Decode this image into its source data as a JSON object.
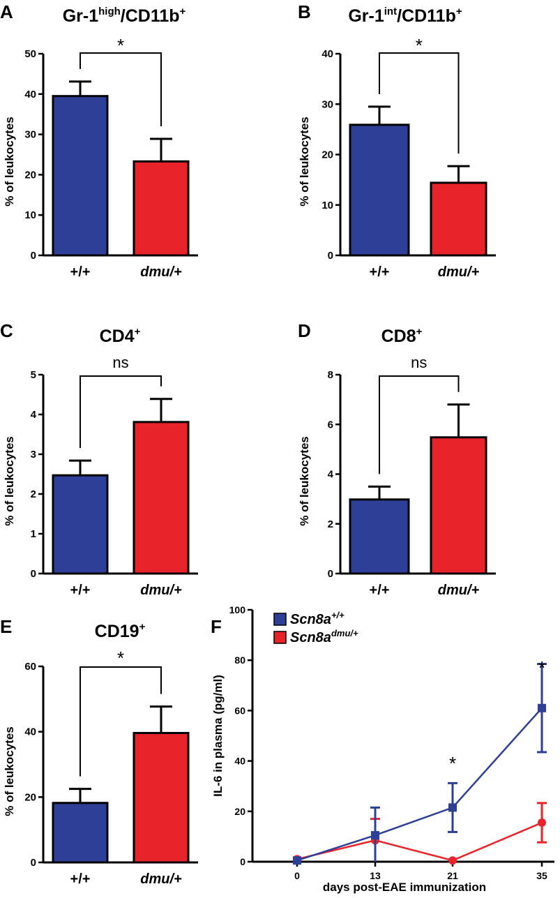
{
  "colors": {
    "wt": "#2e3f97",
    "dmu": "#e9232a",
    "axis": "#000000"
  },
  "chart_data": [
    {
      "type": "bar",
      "panel": "A",
      "title": "Gr-1",
      "title_sup": "high",
      "title_rest": "/CD11b",
      "title_sup2": "+",
      "ylabel": "% of leukocytes",
      "ylim": [
        0,
        50
      ],
      "yticks": [
        0,
        10,
        20,
        30,
        40,
        50
      ],
      "categories": [
        "+/+",
        "dmu/+"
      ],
      "category_italic": [
        false,
        true
      ],
      "values": [
        39.5,
        23.3
      ],
      "errors": [
        3.6,
        5.6
      ],
      "comparison": "*"
    },
    {
      "type": "bar",
      "panel": "B",
      "title": "Gr-1",
      "title_sup": "int",
      "title_rest": "/CD11b",
      "title_sup2": "+",
      "ylabel": "% of leukocytes",
      "ylim": [
        0,
        40
      ],
      "yticks": [
        0,
        10,
        20,
        30,
        40
      ],
      "categories": [
        "+/+",
        "dmu/+"
      ],
      "category_italic": [
        false,
        true
      ],
      "values": [
        25.9,
        14.4
      ],
      "errors": [
        3.6,
        3.3
      ],
      "comparison": "*"
    },
    {
      "type": "bar",
      "panel": "C",
      "title": "CD4",
      "title_sup": "+",
      "title_rest": "",
      "title_sup2": "",
      "ylabel": "% of leukocytes",
      "ylim": [
        0,
        5
      ],
      "yticks": [
        0,
        1,
        2,
        3,
        4,
        5
      ],
      "categories": [
        "+/+",
        "dmu/+"
      ],
      "category_italic": [
        false,
        true
      ],
      "values": [
        2.47,
        3.81
      ],
      "errors": [
        0.37,
        0.58
      ],
      "comparison": "ns"
    },
    {
      "type": "bar",
      "panel": "D",
      "title": "CD8",
      "title_sup": "+",
      "title_rest": "",
      "title_sup2": "",
      "ylabel": "% of leukocytes",
      "ylim": [
        0,
        8
      ],
      "yticks": [
        0,
        2,
        4,
        6,
        8
      ],
      "categories": [
        "+/+",
        "dmu/+"
      ],
      "category_italic": [
        false,
        true
      ],
      "values": [
        2.98,
        5.48
      ],
      "errors": [
        0.52,
        1.32
      ],
      "comparison": "ns"
    },
    {
      "type": "bar",
      "panel": "E",
      "title": "CD19",
      "title_sup": "+",
      "title_rest": "",
      "title_sup2": "",
      "ylabel": "% of leukocytes",
      "ylim": [
        0,
        60
      ],
      "yticks": [
        0,
        20,
        40,
        60
      ],
      "categories": [
        "+/+",
        "dmu/+"
      ],
      "category_italic": [
        false,
        true
      ],
      "values": [
        18.2,
        39.6
      ],
      "errors": [
        4.3,
        8.1
      ],
      "comparison": "*"
    },
    {
      "type": "line",
      "panel": "F",
      "xlabel": "days post-EAE immunization",
      "ylabel": "IL-6 in plasma (pg/ml)",
      "ylim": [
        0,
        100
      ],
      "yticks": [
        0,
        20,
        40,
        60,
        80,
        100
      ],
      "x": [
        0,
        13,
        21,
        35
      ],
      "x_labels": [
        "0",
        "13",
        "21",
        "35"
      ],
      "series": [
        {
          "name": "Scn8a",
          "sup": "+/+",
          "marker": "square",
          "values": [
            0.5,
            10.5,
            21.5,
            61
          ],
          "errors": [
            0,
            11,
            9.7,
            17.5
          ]
        },
        {
          "name": "Scn8a",
          "sup": "dmu/+",
          "marker": "circle",
          "values": [
            1,
            8.5,
            0.5,
            15.5
          ],
          "errors": [
            0,
            8.5,
            0,
            7.8
          ]
        }
      ],
      "significance": [
        {
          "x": 21,
          "label": "*"
        },
        {
          "x": 35,
          "label": "*"
        }
      ]
    }
  ]
}
